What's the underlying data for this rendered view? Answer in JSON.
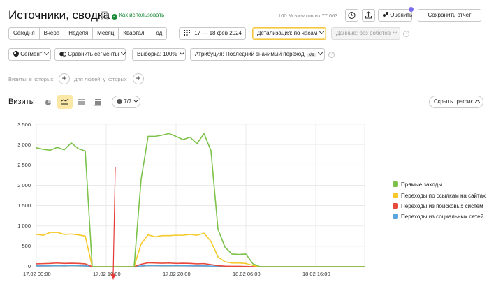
{
  "header": {
    "title": "Источники, сводка",
    "how_to_use": "Как использовать",
    "visits_share": "100 % визитов из 77 063",
    "rate_label": "Оценить",
    "save_report": "Сохранить отчет"
  },
  "period": {
    "buttons": [
      "Сегодня",
      "Вчера",
      "Неделя",
      "Месяц",
      "Квартал",
      "Год"
    ],
    "date_range": "17 — 18 фев 2024",
    "detail": "Детализация: по часам",
    "data_filter": "Данные: без роботов"
  },
  "filters": {
    "segment": "Сегмент",
    "compare": "Сравнить сегменты",
    "sample": "Выборка: 100%",
    "attribution": "Атрибуция: Последний значимый переход",
    "attribution_badge": "к/д"
  },
  "segment_row": {
    "visits_label": "Визиты, в которых",
    "people_label": "для людей, у которых"
  },
  "chart_header": {
    "title": "Визиты",
    "series_count": "7/7",
    "hide_chart": "Скрыть график"
  },
  "colors": {
    "green": "#7cc24a",
    "yellow": "#f6c928",
    "red": "#e8493a",
    "blue": "#5aa7e0",
    "annotation": "#e53935"
  },
  "chart_data": {
    "type": "line",
    "ylim": [
      0,
      3500
    ],
    "yticks": [
      "0",
      "500",
      "1 000",
      "1 500",
      "2 000",
      "2 500",
      "3 000",
      "3 500"
    ],
    "xticks": [
      "17.02 00:00",
      "17.02 10:00",
      "17.02 20:00",
      "18.02 06:00",
      "18.02 16:00"
    ],
    "x_hours": [
      0,
      1,
      2,
      3,
      4,
      5,
      6,
      7,
      8,
      9,
      10,
      11,
      12,
      13,
      14,
      15,
      16,
      17,
      18,
      19,
      20,
      21,
      22,
      23,
      24,
      25,
      26,
      27,
      28,
      29,
      30,
      31,
      32,
      33,
      34,
      35,
      36,
      37,
      38,
      39,
      40,
      41,
      42,
      43,
      44,
      45,
      46,
      47
    ],
    "series": [
      {
        "name": "Прямые заходы",
        "color": "#7cc24a",
        "values": [
          2920,
          2880,
          2860,
          2930,
          2870,
          3040,
          2900,
          2840,
          0,
          0,
          0,
          0,
          0,
          0,
          0,
          2150,
          3200,
          3200,
          3230,
          3270,
          3200,
          3120,
          3180,
          3020,
          3270,
          2850,
          920,
          480,
          310,
          300,
          310,
          70,
          0,
          0,
          0,
          0,
          0,
          0,
          0,
          0,
          0,
          0,
          0,
          0,
          0,
          0,
          0,
          0
        ]
      },
      {
        "name": "Переходы по ссылкам на сайтах",
        "color": "#f6c928",
        "values": [
          790,
          770,
          840,
          840,
          790,
          800,
          780,
          750,
          0,
          0,
          0,
          0,
          0,
          0,
          0,
          560,
          780,
          730,
          760,
          760,
          770,
          770,
          790,
          770,
          820,
          620,
          240,
          120,
          90,
          90,
          80,
          30,
          0,
          0,
          0,
          0,
          0,
          0,
          0,
          0,
          0,
          0,
          0,
          0,
          0,
          0,
          0,
          0
        ]
      },
      {
        "name": "Переходы из поисковых систем",
        "color": "#e8493a",
        "values": [
          70,
          75,
          80,
          90,
          80,
          85,
          80,
          70,
          0,
          0,
          0,
          0,
          0,
          0,
          0,
          60,
          95,
          90,
          85,
          90,
          80,
          85,
          80,
          70,
          75,
          50,
          25,
          15,
          10,
          10,
          5,
          0,
          0,
          0,
          0,
          0,
          0,
          0,
          0,
          0,
          0,
          0,
          0,
          0,
          0,
          0,
          0,
          0
        ]
      },
      {
        "name": "Переходы из социальных сетей",
        "color": "#5aa7e0",
        "values": [
          20,
          22,
          25,
          28,
          24,
          30,
          26,
          22,
          0,
          0,
          0,
          0,
          0,
          0,
          0,
          18,
          30,
          28,
          26,
          28,
          26,
          27,
          25,
          22,
          24,
          15,
          8,
          5,
          3,
          3,
          2,
          0,
          0,
          0,
          0,
          0,
          0,
          0,
          0,
          0,
          0,
          0,
          0,
          0,
          0,
          0,
          0,
          0
        ]
      }
    ]
  }
}
